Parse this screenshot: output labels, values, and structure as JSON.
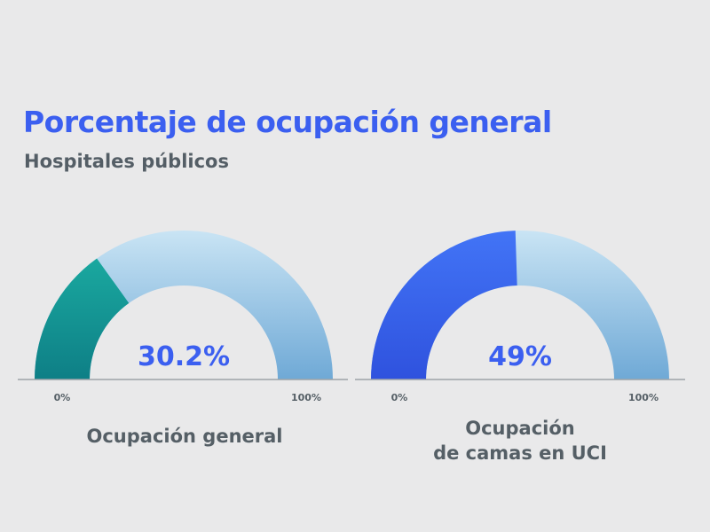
{
  "header": {
    "title": "Porcentaje de ocupación general",
    "subtitle": "Hospitales públicos"
  },
  "colors": {
    "title": "#3b5ff0",
    "text": "#555f66",
    "background": "#e9e9ea"
  },
  "chart_data": [
    {
      "type": "gauge",
      "value": 30.2,
      "value_label": "30.2%",
      "min_label": "0%",
      "max_label": "100%",
      "range": [
        0,
        100
      ],
      "label_lines": [
        "Ocupación general"
      ],
      "fill_color": "teal"
    },
    {
      "type": "gauge",
      "value": 49,
      "value_label": "49%",
      "min_label": "0%",
      "max_label": "100%",
      "range": [
        0,
        100
      ],
      "label_lines": [
        "Ocupación",
        "de camas en UCI"
      ],
      "fill_color": "blue"
    }
  ]
}
